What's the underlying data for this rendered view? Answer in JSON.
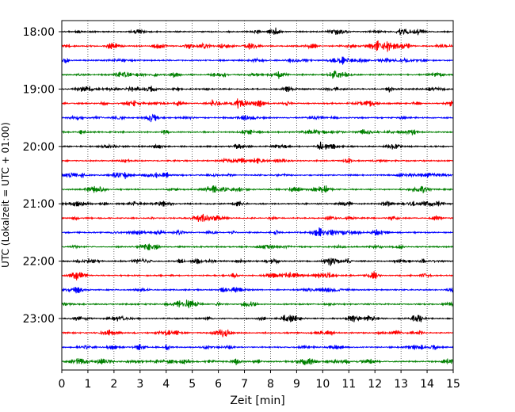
{
  "chart_data": {
    "type": "line",
    "title": "",
    "xlabel": "Zeit  [min]",
    "ylabel": "UTC (Lokalzeit = UTC + 01:00)",
    "xlim": [
      0,
      15
    ],
    "x_ticks": [
      "0",
      "1",
      "2",
      "3",
      "4",
      "5",
      "6",
      "7",
      "8",
      "9",
      "10",
      "11",
      "12",
      "13",
      "14",
      "15"
    ],
    "y_ticks": [
      "18:00",
      "19:00",
      "20:00",
      "21:00",
      "22:00",
      "23:00"
    ],
    "grid": "vertical dotted at each minute",
    "trace_interval_min": 15,
    "first_trace_time": "18:00",
    "trace_count": 24,
    "trace_colors": [
      "#000000",
      "#ff0000",
      "#0000ff",
      "#008000"
    ]
  }
}
